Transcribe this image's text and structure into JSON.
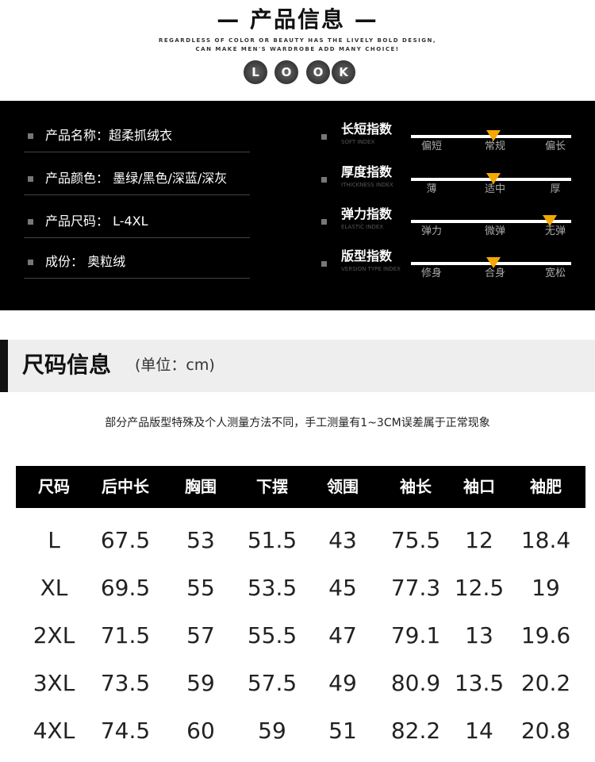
{
  "header": {
    "title": "— 产品信息 —",
    "tagline1": "REGARDLESS OF COLOR OR BEAUTY HAS THE LIVELY BOLD DESIGN,",
    "tagline2": "CAN MAKE MEN'S WARDROBE ADD MANY CHOICE!",
    "look": [
      "L",
      "O",
      "O",
      "K"
    ]
  },
  "info": [
    {
      "label": "产品名称：超柔抓绒衣"
    },
    {
      "label": "产品颜色： 墨绿/黑色/深蓝/深灰"
    },
    {
      "label": "产品尺码： L-4XL"
    },
    {
      "label": "成份：  奥粒绒"
    }
  ],
  "indexes": [
    {
      "title": "长短指数",
      "sub": "SOFT INDEX",
      "ticks": [
        "偏短",
        "常规",
        "偏长"
      ],
      "value": 0.5
    },
    {
      "title": "厚度指数",
      "sub": "ITHICKNESS INDEX",
      "ticks": [
        "薄",
        "适中",
        "厚"
      ],
      "value": 0.5
    },
    {
      "title": "弹力指数",
      "sub": "ELASTIC INDEX",
      "ticks": [
        "弹力",
        "微弹",
        "无弹"
      ],
      "value": 0.97
    },
    {
      "title": "版型指数",
      "sub": "VERSION TYPE INDEX",
      "ticks": [
        "修身",
        "合身",
        "宽松"
      ],
      "value": 0.5
    }
  ],
  "marker_color": "#f5a800",
  "size": {
    "title": "尺码信息",
    "unit": "(单位：cm)",
    "note": "部分产品版型特殊及个人测量方法不同，手工测量有1~3CM误差属于正常现象",
    "headers": [
      "尺码",
      "后中长",
      "胸围",
      "下摆",
      "领围",
      "袖长",
      "袖口",
      "袖肥"
    ],
    "rows": [
      [
        "L",
        "67.5",
        "53",
        "51.5",
        "43",
        "75.5",
        "12",
        "18.4"
      ],
      [
        "XL",
        "69.5",
        "55",
        "53.5",
        "45",
        "77.3",
        "12.5",
        "19"
      ],
      [
        "2XL",
        "71.5",
        "57",
        "55.5",
        "47",
        "79.1",
        "13",
        "19.6"
      ],
      [
        "3XL",
        "73.5",
        "59",
        "57.5",
        "49",
        "80.9",
        "13.5",
        "20.2"
      ],
      [
        "4XL",
        "74.5",
        "60",
        "59",
        "51",
        "82.2",
        "14",
        "20.8"
      ]
    ]
  }
}
